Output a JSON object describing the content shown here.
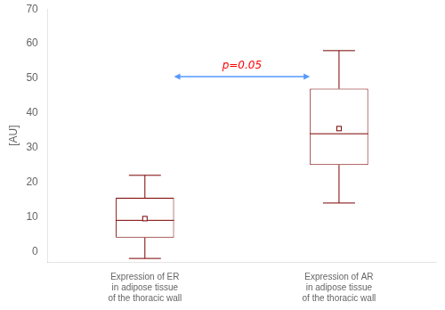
{
  "chart_data": {
    "type": "box",
    "categories": [
      "Expression of ER\nin adipose tissue\nof the thoracic wall",
      "Expression of AR\nin adipose tissue\nof the thoracic wall"
    ],
    "boxes": [
      {
        "q1": 4.0,
        "q3": 15.5,
        "median": 9.0,
        "mean": 9.5,
        "whisker_low": -2.0,
        "whisker_high": 22.0
      },
      {
        "q1": 25.0,
        "q3": 47.0,
        "median": 34.0,
        "mean": 35.5,
        "whisker_low": 14.0,
        "whisker_high": 58.0
      }
    ],
    "color": "#7B0000",
    "ylabel": "[AU]",
    "ylim": [
      -3,
      70
    ],
    "yticks": [
      0,
      10,
      20,
      30,
      40,
      50,
      60,
      70
    ],
    "grid": false,
    "annotations": [
      {
        "text": "p=0.05",
        "color": "#FF0000",
        "y": 52.0,
        "arrow_y": 50.5,
        "arrow_color": "#5599FF"
      }
    ]
  }
}
